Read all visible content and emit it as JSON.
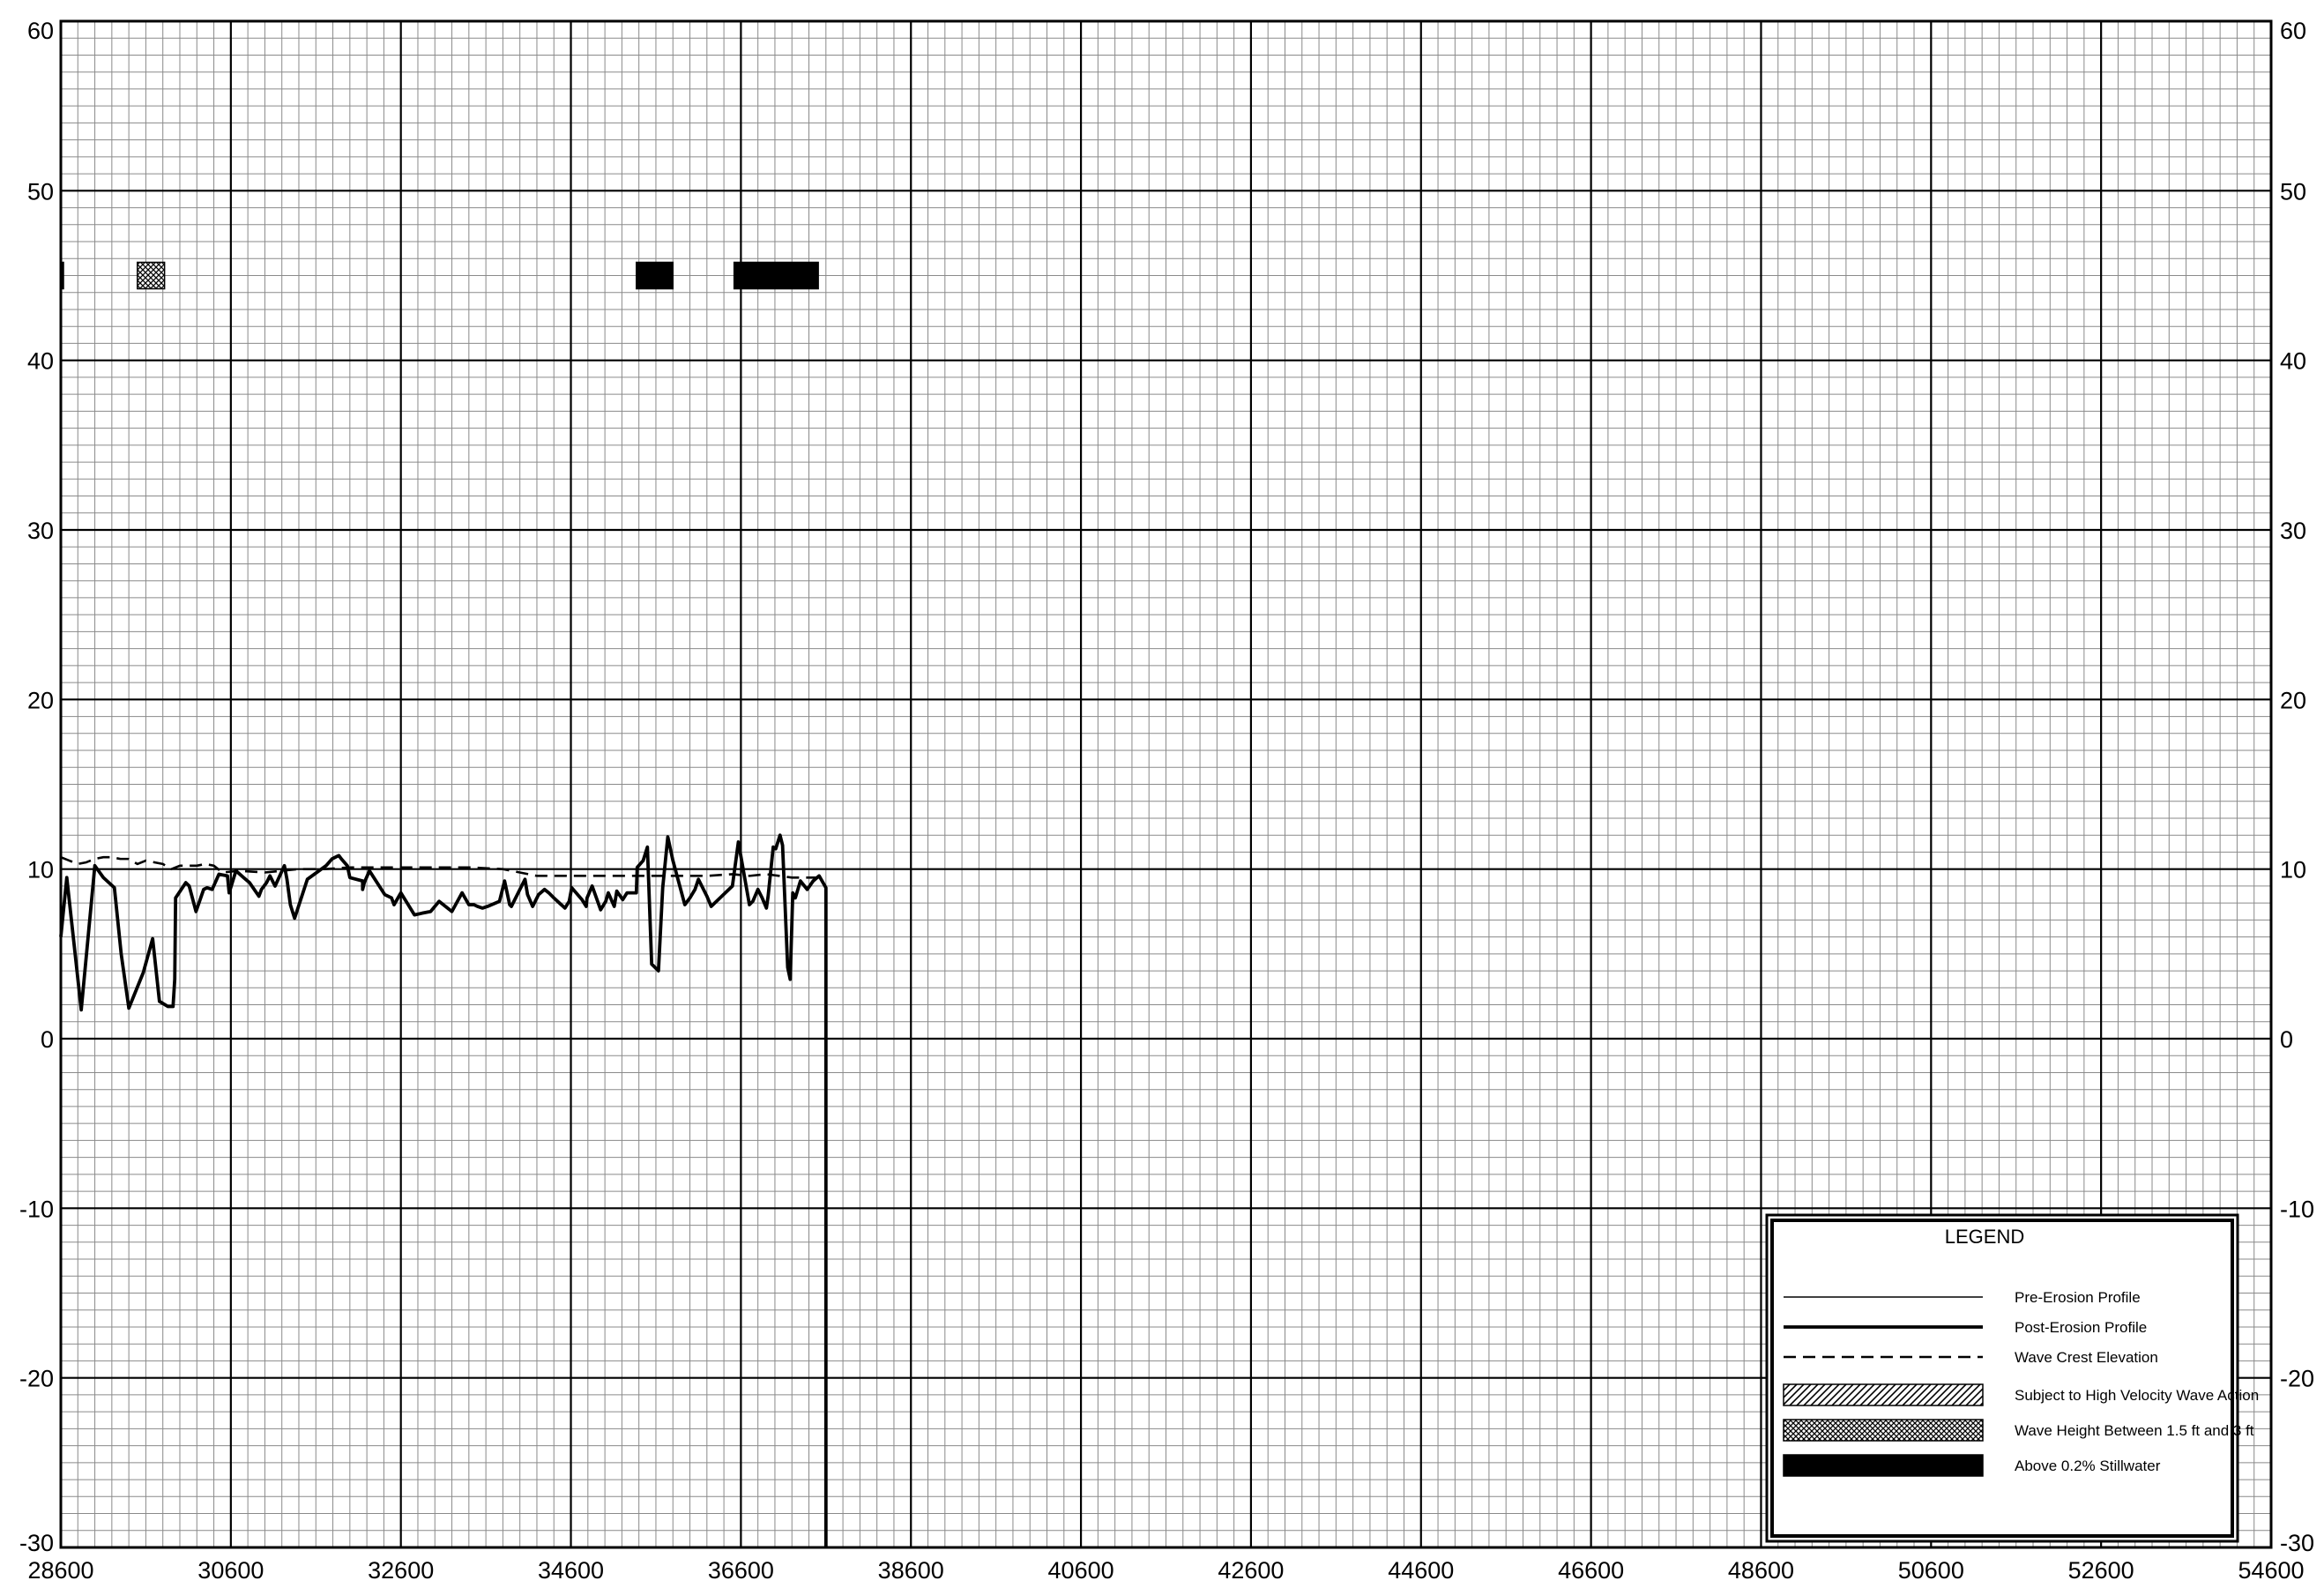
{
  "chart_data": {
    "type": "line",
    "title": "",
    "xlabel": "",
    "ylabel": "",
    "xlim": [
      28600,
      54600
    ],
    "ylim": [
      -30,
      60
    ],
    "x_ticks": [
      28600,
      30600,
      32600,
      34600,
      36600,
      38600,
      40600,
      42600,
      44600,
      46600,
      48600,
      50600,
      52600,
      54600
    ],
    "y_ticks": [
      -30,
      -20,
      -10,
      0,
      10,
      20,
      30,
      40,
      50,
      60
    ],
    "x_tick_labels": [
      "28600",
      "30600",
      "32600",
      "34600",
      "36600",
      "38600",
      "40600",
      "42600",
      "44600",
      "46600",
      "48600",
      "50600",
      "52600",
      "54600"
    ],
    "y_tick_labels": [
      "-30",
      "-20",
      "-10",
      "0",
      "10",
      "20",
      "30",
      "40",
      "50",
      "60"
    ],
    "minor_x_step": 200,
    "minor_y_step": 1,
    "grid": true,
    "legend": {
      "title": "LEGEND",
      "placement": "bottom-right",
      "entries": [
        {
          "label": "Pre-Erosion Profile",
          "style": "thin-line"
        },
        {
          "label": "Post-Erosion Profile",
          "style": "thick-line"
        },
        {
          "label": "Wave Crest Elevation",
          "style": "dashed-line"
        },
        {
          "label": "Subject to High Velocity Wave Action",
          "style": "hatch"
        },
        {
          "label": "Wave Height Between 1.5 ft and 3 ft",
          "style": "crosshatch"
        },
        {
          "label": "Above 0.2% Stillwater",
          "style": "solid-fill"
        }
      ]
    },
    "series": [
      {
        "style": "thick-line",
        "x": [
          28600,
          28670,
          28840,
          29000,
          29100,
          29230,
          29310,
          29400,
          29570,
          29680,
          29760,
          29860,
          29880,
          29920,
          29940,
          29950,
          30070,
          30110,
          30190,
          30280,
          30320,
          30380,
          30460,
          30560,
          30580,
          30660,
          30750,
          30820,
          30930,
          30960,
          31020,
          31060,
          31120,
          31230,
          31260,
          31300,
          31350,
          31500,
          31720,
          31790,
          31870,
          31900,
          31970,
          32000,
          32150,
          32150,
          32170,
          32230,
          32410,
          32490,
          32520,
          32600,
          32760,
          32850,
          32950,
          33050,
          33200,
          33320,
          33400,
          33460,
          33500,
          33560,
          33620,
          33760,
          33820,
          33880,
          33900,
          34060,
          34090,
          34150,
          34220,
          34290,
          34340,
          34400,
          34530,
          34580,
          34610,
          34730,
          34780,
          34790,
          34850,
          34900,
          34950,
          35010,
          35040,
          35110,
          35140,
          35210,
          35260,
          35370,
          35380,
          35450,
          35500,
          35550,
          35630,
          35680,
          35740,
          35800,
          35940,
          36000,
          36060,
          36100,
          36200,
          36250,
          36500,
          36570,
          36700,
          36740,
          36800,
          36850,
          36900,
          36920,
          36980,
          37010,
          37060,
          37090,
          37150,
          37180,
          37210,
          37240,
          37300,
          37380,
          37450,
          37520,
          37600,
          37600
        ],
        "y": [
          6.0,
          9.5,
          1.7,
          10.2,
          9.5,
          8.9,
          5.0,
          1.8,
          3.9,
          5.9,
          2.2,
          1.9,
          1.9,
          1.9,
          3.5,
          8.3,
          9.2,
          9.0,
          7.5,
          8.8,
          8.9,
          8.8,
          9.7,
          9.6,
          8.6,
          9.9,
          9.5,
          9.2,
          8.4,
          8.8,
          9.2,
          9.6,
          9.0,
          10.2,
          9.4,
          7.9,
          7.1,
          9.4,
          10.2,
          10.6,
          10.8,
          10.6,
          10.2,
          9.5,
          9.3,
          8.8,
          9.2,
          9.9,
          8.5,
          8.3,
          7.9,
          8.6,
          7.3,
          7.4,
          7.5,
          8.1,
          7.5,
          8.6,
          7.9,
          7.9,
          7.8,
          7.7,
          7.8,
          8.1,
          9.3,
          7.9,
          7.8,
          9.4,
          8.5,
          7.8,
          8.5,
          8.8,
          8.6,
          8.3,
          7.7,
          8.1,
          8.9,
          8.2,
          7.8,
          8.3,
          9.0,
          8.3,
          7.6,
          8.1,
          8.6,
          7.8,
          8.7,
          8.2,
          8.6,
          8.6,
          10.1,
          10.5,
          11.3,
          4.4,
          4.0,
          8.9,
          11.9,
          10.5,
          7.9,
          8.3,
          8.8,
          9.4,
          8.4,
          7.8,
          9.0,
          11.6,
          7.9,
          8.1,
          8.8,
          8.3,
          7.7,
          8.4,
          11.3,
          11.2,
          12.0,
          11.4,
          4.2,
          3.5,
          8.6,
          8.3,
          9.3,
          8.8,
          9.3,
          9.6,
          8.9,
          -30.0
        ]
      },
      {
        "style": "dashed-line",
        "x": [
          28600,
          28700,
          28800,
          28900,
          29000,
          29100,
          29200,
          29300,
          29400,
          29500,
          29600,
          29700,
          29800,
          29900,
          30000,
          30100,
          30200,
          30300,
          30400,
          30500,
          30700,
          31000,
          31200,
          31400,
          31700,
          32000,
          32300,
          32600,
          33000,
          33400,
          33800,
          34200,
          34600,
          35000,
          35400,
          35800,
          36200,
          36500,
          36700,
          36900,
          37200,
          37400,
          37550
        ],
        "y": [
          10.7,
          10.5,
          10.3,
          10.4,
          10.6,
          10.7,
          10.7,
          10.6,
          10.6,
          10.3,
          10.5,
          10.4,
          10.3,
          10.0,
          10.2,
          10.2,
          10.2,
          10.3,
          10.2,
          9.8,
          9.9,
          9.8,
          9.9,
          10.0,
          10.0,
          10.1,
          10.1,
          10.1,
          10.1,
          10.1,
          10.0,
          9.6,
          9.6,
          9.6,
          9.6,
          9.6,
          9.6,
          9.7,
          9.6,
          9.7,
          9.5,
          9.5,
          9.5
        ]
      }
    ],
    "bands": [
      {
        "style": "solid-fill",
        "x_start": 28600,
        "x_end": 28630,
        "y": 45
      },
      {
        "style": "crosshatch",
        "x_start": 29500,
        "x_end": 29820,
        "y": 45
      },
      {
        "style": "solid-fill",
        "x_start": 35370,
        "x_end": 35800,
        "y": 45
      },
      {
        "style": "solid-fill",
        "x_start": 36520,
        "x_end": 37510,
        "y": 45
      }
    ]
  }
}
